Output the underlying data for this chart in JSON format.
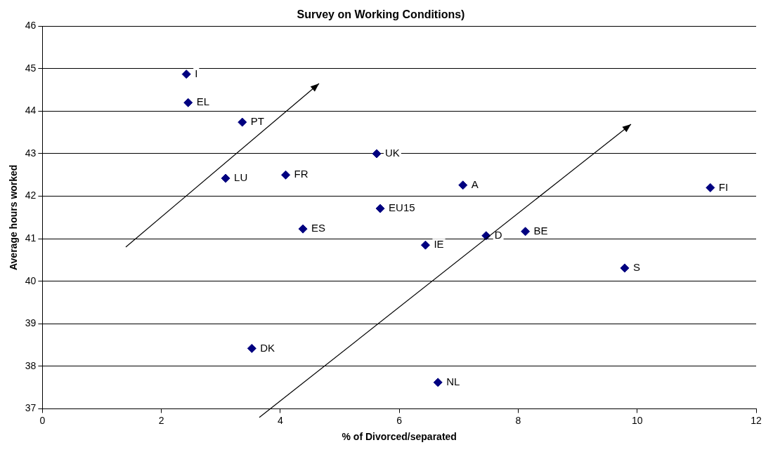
{
  "chart_data": {
    "type": "scatter",
    "title": "Survey on Working Conditions)",
    "xlabel": "% of Divorced/separated",
    "ylabel": "Average hours worked",
    "series": [
      {
        "color": "#000080",
        "x": [
          2.42,
          2.45,
          3.36,
          3.08,
          4.09,
          5.62,
          7.07,
          11.23,
          5.68,
          4.38,
          6.44,
          7.46,
          8.12,
          9.79,
          3.52,
          6.65
        ],
        "values": [
          44.87,
          44.2,
          43.74,
          42.42,
          42.5,
          43.0,
          42.26,
          42.2,
          41.71,
          41.23,
          40.85,
          41.07,
          41.17,
          40.31,
          38.42,
          37.62
        ]
      }
    ],
    "annotations": [
      {
        "text": "I",
        "x": 2.42,
        "y": 44.87
      },
      {
        "text": "EL",
        "x": 2.45,
        "y": 44.2
      },
      {
        "text": "PT",
        "x": 3.36,
        "y": 43.74
      },
      {
        "text": "LU",
        "x": 3.08,
        "y": 42.42
      },
      {
        "text": "FR",
        "x": 4.09,
        "y": 42.5
      },
      {
        "text": "UK",
        "x": 5.62,
        "y": 43.0
      },
      {
        "text": "A",
        "x": 7.07,
        "y": 42.26
      },
      {
        "text": "FI",
        "x": 11.23,
        "y": 42.2
      },
      {
        "text": "EU15",
        "x": 5.68,
        "y": 41.71
      },
      {
        "text": "ES",
        "x": 4.38,
        "y": 41.23
      },
      {
        "text": "IE",
        "x": 6.44,
        "y": 40.85
      },
      {
        "text": "D",
        "x": 7.46,
        "y": 41.07
      },
      {
        "text": "BE",
        "x": 8.12,
        "y": 41.17
      },
      {
        "text": "S",
        "x": 9.79,
        "y": 40.31
      },
      {
        "text": "DK",
        "x": 3.52,
        "y": 38.42
      },
      {
        "text": "NL",
        "x": 6.65,
        "y": 37.62
      }
    ],
    "xlim": [
      0,
      12
    ],
    "xticks": [
      0,
      2,
      4,
      6,
      8,
      10,
      12
    ],
    "ylim": [
      37,
      46
    ],
    "yticks": [
      37,
      38,
      39,
      40,
      41,
      42,
      43,
      44,
      45,
      46
    ],
    "grid": "y",
    "marker": "diamond",
    "legend": false
  }
}
